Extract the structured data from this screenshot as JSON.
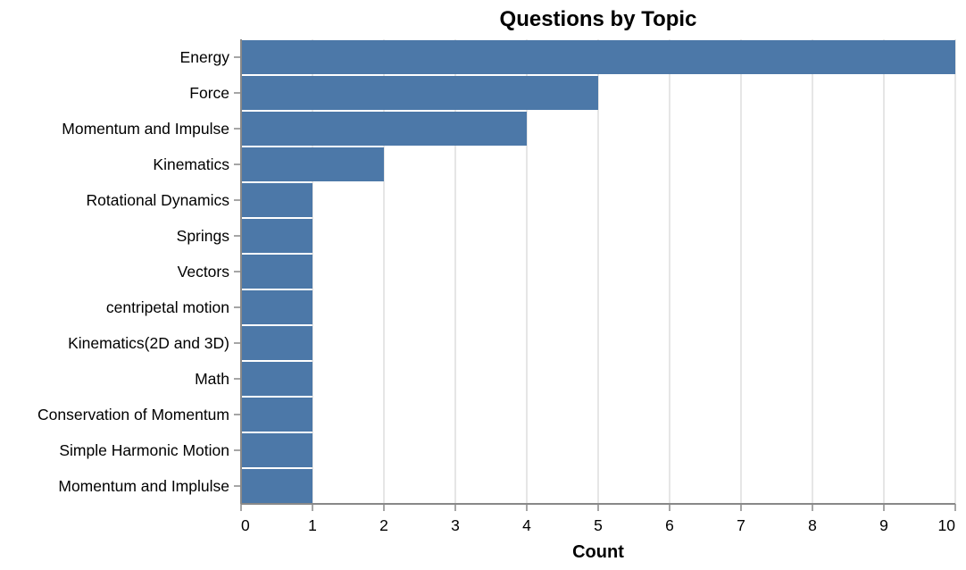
{
  "chart_data": {
    "type": "bar",
    "orientation": "horizontal",
    "title": "Questions by Topic",
    "xlabel": "Count",
    "ylabel": "",
    "xlim": [
      0,
      10
    ],
    "x_ticks": [
      0,
      1,
      2,
      3,
      4,
      5,
      6,
      7,
      8,
      9,
      10
    ],
    "grid": true,
    "bar_color": "#4c78a8",
    "categories": [
      "Energy",
      "Force",
      "Momentum and Impulse",
      "Kinematics",
      "Rotational Dynamics",
      "Springs",
      "Vectors",
      "centripetal motion",
      "Kinematics(2D and 3D)",
      "Math",
      "Conservation of Momentum",
      "Simple Harmonic Motion",
      "Momentum and Implulse"
    ],
    "values": [
      10,
      5,
      4,
      2,
      1,
      1,
      1,
      1,
      1,
      1,
      1,
      1,
      1
    ]
  }
}
